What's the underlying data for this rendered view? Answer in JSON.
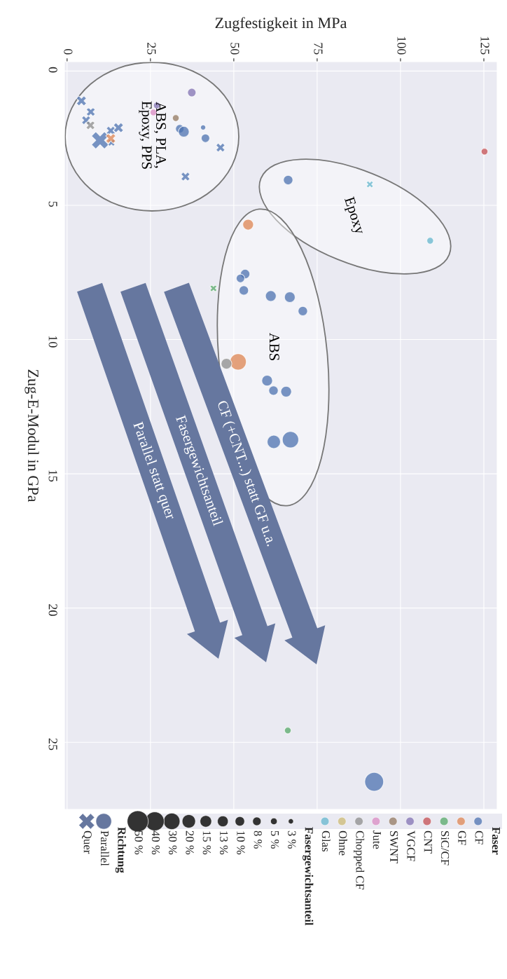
{
  "chart_data": {
    "type": "bubble",
    "xlabel": "Zugfestigkeit in MPa",
    "ylabel": "Zug-E-Modul in GPa",
    "xlim": [
      -0.8,
      129
    ],
    "xticks": [
      0,
      25,
      50,
      75,
      100,
      125
    ],
    "ylim": [
      27.5,
      -0.35
    ],
    "yticks": [
      0,
      5,
      10,
      15,
      20,
      25
    ],
    "grid": true,
    "legend": "bottom",
    "legend_title": "Faser",
    "size_legend": [
      {
        "value": 3,
        "label": "3 %"
      },
      {
        "value": 5,
        "label": "5 %"
      },
      {
        "value": 8,
        "label": "8 %"
      },
      {
        "value": 10,
        "label": "10 %"
      },
      {
        "value": 13,
        "label": "13 %"
      },
      {
        "value": 15,
        "label": "15 %"
      },
      {
        "value": 20,
        "label": "20 %"
      },
      {
        "value": 30,
        "label": "30 %"
      },
      {
        "value": 40,
        "label": "40 %"
      },
      {
        "value": 50,
        "label": "50 %"
      }
    ],
    "annotations": [
      "ABS, PLA,\nEpoxy, PPS",
      "Epoxy",
      "ABS",
      "CF (+CNT...) statt GF u.a.",
      "Fasergewichtsanteil",
      "Parallel statt quer",
      "Fasergewichtsanteil",
      "Richtung",
      "Parallel",
      "Quer"
    ],
    "series": [
      {
        "name": "CF",
        "color": "#4c72b0",
        "x": [
          33.8,
          35.0,
          40.8,
          41.5,
          46.0,
          35.5,
          4.3,
          7.1,
          5.7,
          13.1,
          15.4,
          9.9,
          13.3,
          66.3,
          53.4,
          52.0,
          53.0,
          61.1,
          66.8,
          70.7,
          60.0,
          61.9,
          65.7,
          62.0,
          67.0,
          92.1
        ],
        "values": [
          2.15,
          2.26,
          2.1,
          2.5,
          2.85,
          3.93,
          1.11,
          1.52,
          1.83,
          2.22,
          2.11,
          2.58,
          2.67,
          4.06,
          7.56,
          7.72,
          8.17,
          8.38,
          8.42,
          8.94,
          11.53,
          11.9,
          11.94,
          13.81,
          13.73,
          26.47
        ],
        "sizes": [
          8,
          13,
          3,
          8,
          8,
          8,
          10,
          8,
          8,
          8,
          10,
          30,
          5,
          10,
          10,
          8,
          10,
          13,
          13,
          10,
          13,
          10,
          13,
          20,
          30,
          40
        ],
        "marker": [
          "circle",
          "circle",
          "circle",
          "circle",
          "cross",
          "cross",
          "cross",
          "cross",
          "cross",
          "cross",
          "cross",
          "cross",
          "cross",
          "circle",
          "circle",
          "circle",
          "circle",
          "circle",
          "circle",
          "circle",
          "circle",
          "circle",
          "circle",
          "circle",
          "circle",
          "circle"
        ]
      },
      {
        "name": "GF",
        "color": "#dd8452",
        "x": [
          13.1,
          54.3,
          51.3
        ],
        "values": [
          2.51,
          5.72,
          10.83
        ],
        "sizes": [
          10,
          13,
          30
        ],
        "marker": [
          "cross",
          "circle",
          "circle"
        ]
      },
      {
        "name": "SiC/CF",
        "color": "#55a868",
        "x": [
          43.9,
          66.2
        ],
        "values": [
          8.09,
          24.56
        ],
        "sizes": [
          5,
          5
        ],
        "marker": [
          "cross",
          "circle"
        ]
      },
      {
        "name": "CNT",
        "color": "#c44e52",
        "x": [
          125.2
        ],
        "values": [
          3.0
        ],
        "sizes": [
          5
        ],
        "marker": [
          "circle"
        ]
      },
      {
        "name": "VGCF",
        "color": "#8172b3",
        "x": [
          37.4,
          26.9
        ],
        "values": [
          0.8,
          1.28
        ],
        "sizes": [
          8,
          5
        ],
        "marker": [
          "circle",
          "circle"
        ]
      },
      {
        "name": "SWNT",
        "color": "#937860",
        "x": [
          32.6
        ],
        "values": [
          1.75
        ],
        "sizes": [
          5
        ],
        "marker": [
          "circle"
        ]
      },
      {
        "name": "Jute",
        "color": "#da8bc3",
        "x": [
          25.9
        ],
        "values": [
          1.54
        ],
        "sizes": [
          5
        ],
        "marker": [
          "circle"
        ]
      },
      {
        "name": "Chopped CF",
        "color": "#8c8c8c",
        "x": [
          7.0,
          47.8
        ],
        "values": [
          2.02,
          10.9
        ],
        "sizes": [
          8,
          13
        ],
        "marker": [
          "cross",
          "circle"
        ]
      },
      {
        "name": "Ohne",
        "color": "#ccb974"
      },
      {
        "name": "Glas",
        "color": "#64b5cd",
        "x": [
          90.8,
          108.9
        ],
        "values": [
          4.22,
          6.32
        ],
        "sizes": [
          5,
          5
        ],
        "marker": [
          "cross",
          "circle"
        ]
      }
    ]
  }
}
